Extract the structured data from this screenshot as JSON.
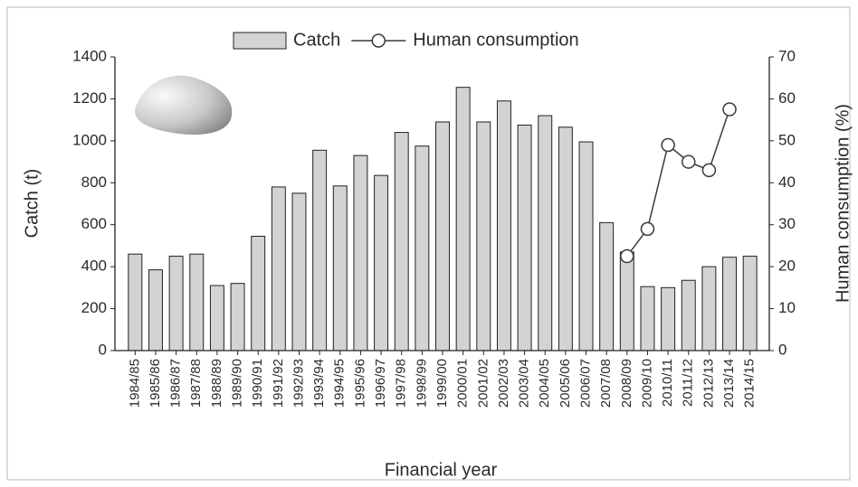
{
  "chart_data": {
    "type": "bar-line",
    "x_label": "Financial year",
    "y_label": "Catch (t)",
    "y2_label": "Human consumption (%)",
    "categories": [
      "1984/85",
      "1985/86",
      "1986/87",
      "1987/88",
      "1988/89",
      "1989/90",
      "1990/91",
      "1991/92",
      "1992/93",
      "1993/94",
      "1994/95",
      "1995/96",
      "1996/97",
      "1997/98",
      "1998/99",
      "1999/00",
      "2000/01",
      "2001/02",
      "2002/03",
      "2003/04",
      "2004/05",
      "2005/06",
      "2006/07",
      "2007/08",
      "2008/09",
      "2009/10",
      "2010/11",
      "2011/12",
      "2012/13",
      "2013/14",
      "2014/15"
    ],
    "series": [
      {
        "name": "Catch",
        "type": "bar",
        "color": "#d3d3d3",
        "values": [
          460,
          385,
          450,
          460,
          310,
          320,
          545,
          780,
          750,
          955,
          785,
          930,
          835,
          1040,
          975,
          1090,
          1255,
          1090,
          1190,
          1075,
          1120,
          1065,
          995,
          610,
          470,
          305,
          300,
          335,
          400,
          445,
          450
        ]
      },
      {
        "name": "Human consumption",
        "type": "line",
        "axis": "y2",
        "color": "#3a3a3a",
        "values": [
          null,
          null,
          null,
          null,
          null,
          null,
          null,
          null,
          null,
          null,
          null,
          null,
          null,
          null,
          null,
          null,
          null,
          null,
          null,
          null,
          null,
          null,
          null,
          null,
          22.5,
          29,
          49,
          45,
          43,
          57.5,
          null
        ]
      }
    ],
    "ylim": [
      0,
      1400
    ],
    "yticks": [
      0,
      200,
      400,
      600,
      800,
      1000,
      1200,
      1400
    ],
    "y2lim": [
      0,
      70
    ],
    "y2ticks": [
      0,
      10,
      20,
      30,
      40,
      50,
      60,
      70
    ],
    "legend": "top",
    "grid": false
  }
}
